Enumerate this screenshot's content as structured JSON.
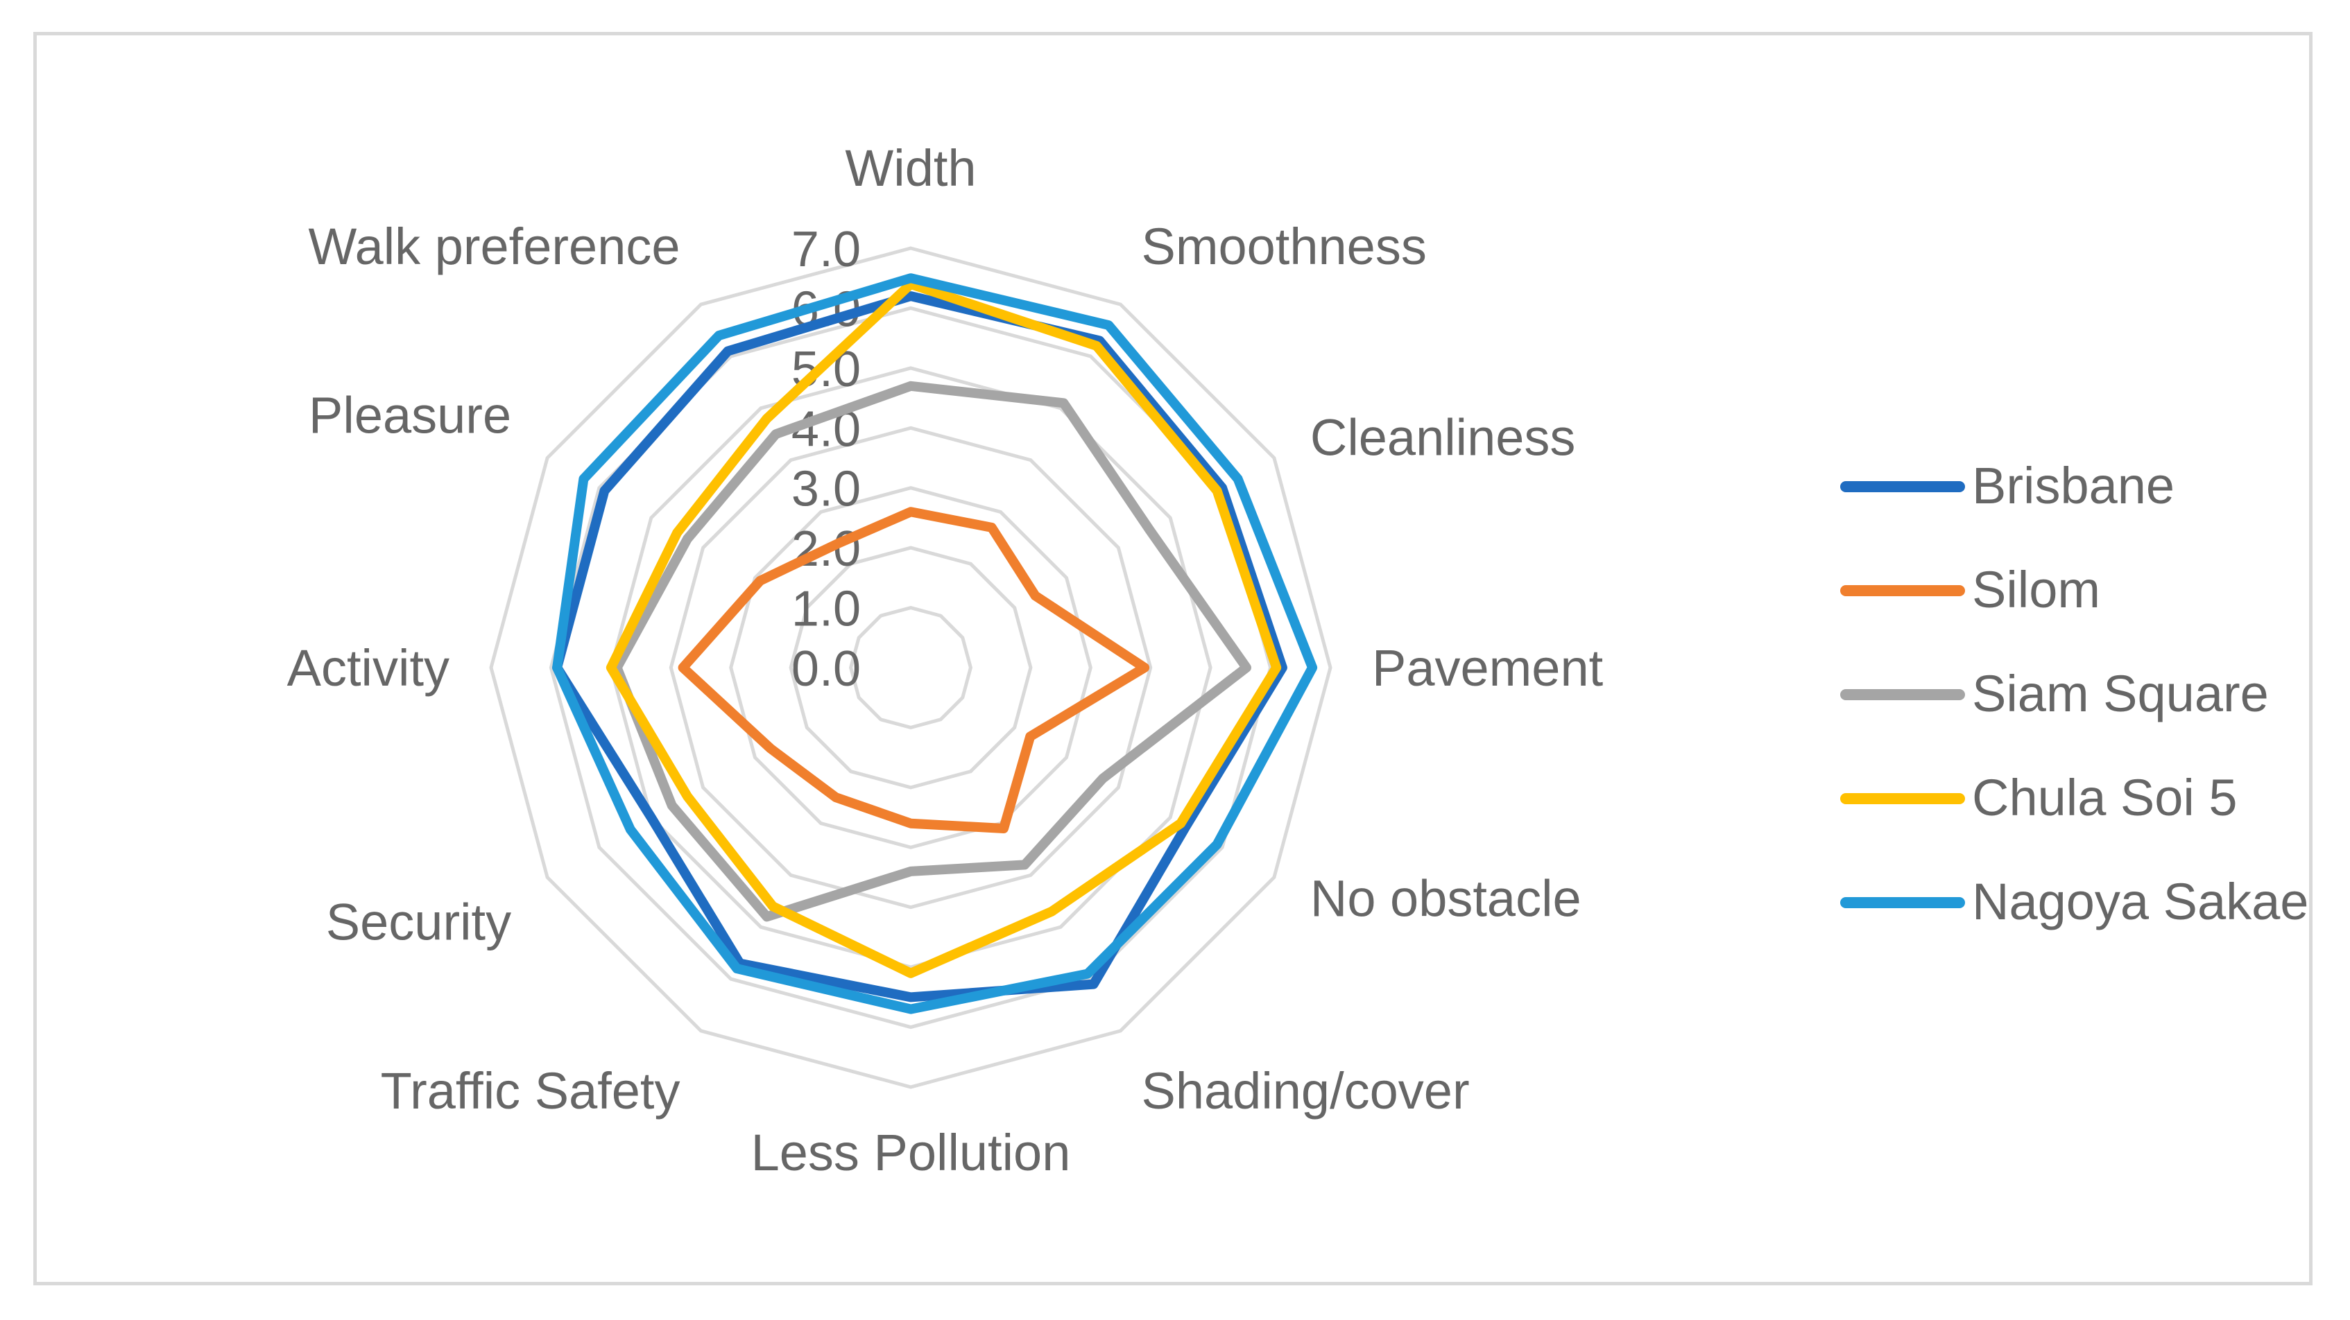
{
  "chart_data": {
    "type": "radar",
    "title": "",
    "categories": [
      "Width",
      "Smoothness",
      "Cleanliness",
      "Pavement",
      "No obstacle",
      "Shading/cover",
      "Less Pollution",
      "Traffic Safety",
      "Security",
      "Activity",
      "Pleasure",
      "Walk preference"
    ],
    "axis": {
      "min": 0,
      "max": 7,
      "step": 1,
      "tick_labels": [
        "0.0",
        "1.0",
        "2.0",
        "3.0",
        "4.0",
        "5.0",
        "6.0",
        "7.0"
      ]
    },
    "legend_position": "right",
    "series": [
      {
        "name": "Brisbane",
        "color": "#1F6CC1",
        "values": [
          6.2,
          6.3,
          6.0,
          6.2,
          5.3,
          6.1,
          5.5,
          5.7,
          5.0,
          5.9,
          5.9,
          6.1
        ]
      },
      {
        "name": "Silom",
        "color": "#F07F2D",
        "values": [
          2.6,
          2.7,
          2.4,
          3.9,
          2.3,
          3.1,
          2.6,
          2.5,
          2.7,
          3.8,
          2.9,
          2.4
        ]
      },
      {
        "name": "Siam Square",
        "color": "#A5A5A5",
        "values": [
          4.7,
          5.1,
          4.6,
          5.6,
          3.7,
          3.8,
          3.4,
          4.8,
          4.6,
          4.9,
          4.3,
          4.5
        ]
      },
      {
        "name": "Chula Soi 5",
        "color": "#FFC000",
        "values": [
          6.4,
          6.2,
          5.9,
          6.1,
          5.2,
          4.7,
          5.1,
          4.6,
          4.3,
          5.0,
          4.5,
          4.8
        ]
      },
      {
        "name": "Nagoya Sakae",
        "color": "#2199D8",
        "values": [
          6.5,
          6.6,
          6.3,
          6.7,
          5.9,
          5.9,
          5.7,
          5.8,
          5.4,
          5.9,
          6.3,
          6.4
        ]
      }
    ]
  }
}
